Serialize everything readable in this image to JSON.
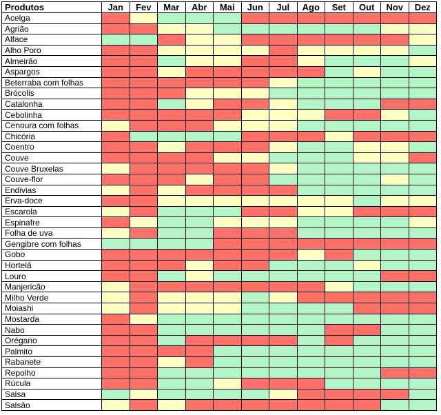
{
  "chart_data": {
    "type": "table",
    "header": {
      "product_label": "Produtos",
      "months": [
        "Jan",
        "Fev",
        "Mar",
        "Abr",
        "Mai",
        "Jun",
        "Jul",
        "Ago",
        "Set",
        "Out",
        "Nov",
        "Dez"
      ]
    },
    "legend_colors": {
      "R": "#ff7066",
      "Y": "#ffffbe",
      "G": "#b2f6c6"
    },
    "rows": [
      {
        "name": "Acelga",
        "cells": [
          "R",
          "Y",
          "G",
          "G",
          "G",
          "R",
          "R",
          "R",
          "R",
          "R",
          "R",
          "R"
        ]
      },
      {
        "name": "Agrião",
        "cells": [
          "R",
          "R",
          "Y",
          "Y",
          "G",
          "G",
          "G",
          "G",
          "G",
          "G",
          "Y",
          "Y"
        ]
      },
      {
        "name": "Alface",
        "cells": [
          "G",
          "G",
          "R",
          "Y",
          "Y",
          "R",
          "R",
          "R",
          "R",
          "R",
          "R",
          "Y"
        ]
      },
      {
        "name": "Alho Poro",
        "cells": [
          "R",
          "R",
          "Y",
          "Y",
          "Y",
          "Y",
          "R",
          "Y",
          "Y",
          "Y",
          "Y",
          "G"
        ]
      },
      {
        "name": "Almeirão",
        "cells": [
          "R",
          "R",
          "G",
          "Y",
          "Y",
          "R",
          "R",
          "Y",
          "G",
          "G",
          "G",
          "Y"
        ]
      },
      {
        "name": "Aspargos",
        "cells": [
          "R",
          "R",
          "Y",
          "R",
          "R",
          "R",
          "R",
          "R",
          "G",
          "Y",
          "G",
          "G"
        ]
      },
      {
        "name": "Beterraba com folhas",
        "cells": [
          "R",
          "R",
          "R",
          "R",
          "R",
          "R",
          "Y",
          "G",
          "G",
          "G",
          "G",
          "G"
        ]
      },
      {
        "name": "Brócolis",
        "cells": [
          "R",
          "R",
          "R",
          "Y",
          "Y",
          "Y",
          "G",
          "G",
          "G",
          "G",
          "G",
          "G"
        ]
      },
      {
        "name": "Catalonha",
        "cells": [
          "R",
          "R",
          "G",
          "Y",
          "R",
          "R",
          "Y",
          "G",
          "G",
          "G",
          "R",
          "R"
        ]
      },
      {
        "name": "Cebolinha",
        "cells": [
          "R",
          "R",
          "R",
          "R",
          "R",
          "Y",
          "Y",
          "Y",
          "R",
          "R",
          "Y",
          "G"
        ]
      },
      {
        "name": "Cenoura com folhas",
        "cells": [
          "Y",
          "R",
          "R",
          "R",
          "Y",
          "Y",
          "Y",
          "G",
          "G",
          "G",
          "G",
          "G"
        ]
      },
      {
        "name": "Chicória",
        "cells": [
          "R",
          "G",
          "G",
          "G",
          "G",
          "R",
          "R",
          "R",
          "Y",
          "R",
          "R",
          "R"
        ]
      },
      {
        "name": "Coentro",
        "cells": [
          "R",
          "R",
          "Y",
          "R",
          "R",
          "R",
          "Y",
          "G",
          "G",
          "Y",
          "Y",
          "G"
        ]
      },
      {
        "name": "Couve",
        "cells": [
          "R",
          "R",
          "R",
          "R",
          "Y",
          "Y",
          "G",
          "G",
          "G",
          "Y",
          "Y",
          "R"
        ]
      },
      {
        "name": "Couve Bruxelas",
        "cells": [
          "Y",
          "R",
          "R",
          "R",
          "R",
          "R",
          "Y",
          "G",
          "G",
          "G",
          "G",
          "G"
        ]
      },
      {
        "name": "Couve-flor",
        "cells": [
          "R",
          "R",
          "R",
          "Y",
          "R",
          "R",
          "G",
          "G",
          "G",
          "G",
          "Y",
          "G"
        ]
      },
      {
        "name": "Endivias",
        "cells": [
          "Y",
          "R",
          "Y",
          "R",
          "R",
          "R",
          "R",
          "G",
          "G",
          "G",
          "G",
          "G"
        ]
      },
      {
        "name": "Erva-doce",
        "cells": [
          "R",
          "R",
          "Y",
          "Y",
          "Y",
          "Y",
          "Y",
          "Y",
          "Y",
          "G",
          "Y",
          "Y"
        ]
      },
      {
        "name": "Escarola",
        "cells": [
          "Y",
          "R",
          "G",
          "G",
          "G",
          "R",
          "R",
          "Y",
          "Y",
          "R",
          "R",
          "R"
        ]
      },
      {
        "name": "Espinafre",
        "cells": [
          "R",
          "Y",
          "G",
          "G",
          "Y",
          "Y",
          "Y",
          "G",
          "G",
          "G",
          "G",
          "Y"
        ]
      },
      {
        "name": "Folha de uva",
        "cells": [
          "Y",
          "R",
          "G",
          "G",
          "R",
          "R",
          "R",
          "G",
          "G",
          "G",
          "G",
          "G"
        ]
      },
      {
        "name": "Gengibre com folhas",
        "cells": [
          "G",
          "G",
          "G",
          "G",
          "R",
          "R",
          "R",
          "R",
          "R",
          "R",
          "R",
          "R"
        ]
      },
      {
        "name": "Gobo",
        "cells": [
          "R",
          "R",
          "R",
          "R",
          "R",
          "R",
          "R",
          "Y",
          "R",
          "G",
          "G",
          "G"
        ]
      },
      {
        "name": "Hortelã",
        "cells": [
          "R",
          "R",
          "R",
          "Y",
          "R",
          "R",
          "G",
          "G",
          "G",
          "Y",
          "G",
          "G"
        ]
      },
      {
        "name": "Louro",
        "cells": [
          "R",
          "R",
          "G",
          "Y",
          "G",
          "G",
          "G",
          "G",
          "G",
          "G",
          "R",
          "R"
        ]
      },
      {
        "name": "Manjericão",
        "cells": [
          "Y",
          "R",
          "R",
          "R",
          "R",
          "R",
          "R",
          "R",
          "Y",
          "G",
          "G",
          "G"
        ]
      },
      {
        "name": "Milho Verde",
        "cells": [
          "Y",
          "R",
          "Y",
          "Y",
          "Y",
          "G",
          "Y",
          "R",
          "R",
          "R",
          "R",
          "R"
        ]
      },
      {
        "name": "Moiashi",
        "cells": [
          "Y",
          "R",
          "Y",
          "Y",
          "Y",
          "G",
          "G",
          "G",
          "G",
          "R",
          "R",
          "R"
        ]
      },
      {
        "name": "Mostarda",
        "cells": [
          "R",
          "Y",
          "G",
          "G",
          "G",
          "G",
          "G",
          "G",
          "G",
          "G",
          "G",
          "G"
        ]
      },
      {
        "name": "Nabo",
        "cells": [
          "R",
          "R",
          "G",
          "G",
          "G",
          "G",
          "G",
          "G",
          "R",
          "R",
          "G",
          "G"
        ]
      },
      {
        "name": "Orégano",
        "cells": [
          "R",
          "R",
          "G",
          "R",
          "R",
          "R",
          "R",
          "G",
          "R",
          "G",
          "G",
          "G"
        ]
      },
      {
        "name": "Palmito",
        "cells": [
          "R",
          "R",
          "R",
          "R",
          "G",
          "G",
          "G",
          "G",
          "G",
          "G",
          "G",
          "G"
        ]
      },
      {
        "name": "Rabanete",
        "cells": [
          "R",
          "R",
          "Y",
          "R",
          "G",
          "G",
          "G",
          "G",
          "G",
          "G",
          "G",
          "G"
        ]
      },
      {
        "name": "Repolho",
        "cells": [
          "R",
          "R",
          "G",
          "G",
          "G",
          "G",
          "G",
          "G",
          "G",
          "G",
          "R",
          "R"
        ]
      },
      {
        "name": "Rúcula",
        "cells": [
          "R",
          "R",
          "G",
          "G",
          "Y",
          "R",
          "R",
          "R",
          "G",
          "G",
          "G",
          "G"
        ]
      },
      {
        "name": "Salsa",
        "cells": [
          "G",
          "Y",
          "G",
          "G",
          "G",
          "G",
          "Y",
          "R",
          "R",
          "R",
          "R",
          "G"
        ]
      },
      {
        "name": "Salsão",
        "cells": [
          "Y",
          "R",
          "Y",
          "R",
          "R",
          "R",
          "R",
          "R",
          "R",
          "R",
          "G",
          "G"
        ]
      }
    ]
  }
}
